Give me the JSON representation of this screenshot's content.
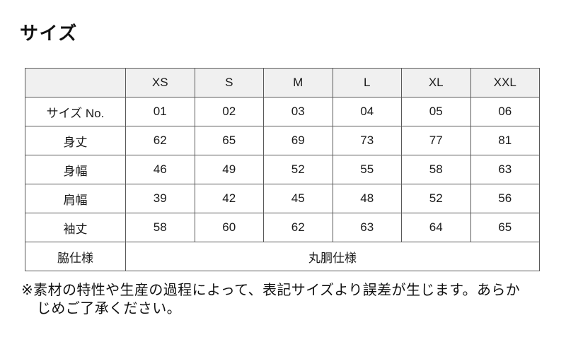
{
  "page": {
    "title": "サイズ"
  },
  "table": {
    "corner_label": "",
    "size_headers": [
      "XS",
      "S",
      "M",
      "L",
      "XL",
      "XXL"
    ],
    "rows": [
      {
        "label": "サイズ No.",
        "values": [
          "01",
          "02",
          "03",
          "04",
          "05",
          "06"
        ]
      },
      {
        "label": "身丈",
        "values": [
          "62",
          "65",
          "69",
          "73",
          "77",
          "81"
        ]
      },
      {
        "label": "身幅",
        "values": [
          "46",
          "49",
          "52",
          "55",
          "58",
          "63"
        ]
      },
      {
        "label": "肩幅",
        "values": [
          "39",
          "42",
          "45",
          "48",
          "52",
          "56"
        ]
      },
      {
        "label": "袖丈",
        "values": [
          "58",
          "60",
          "62",
          "63",
          "64",
          "65"
        ]
      }
    ],
    "spec_row": {
      "label": "脇仕様",
      "value": "丸胴仕様"
    }
  },
  "footnote": {
    "lines": [
      "※素材の特性や生産の過程によって、表記サイズより誤差が生じます。あらか",
      "じめご了承ください。"
    ]
  },
  "colors": {
    "header_bg": "#f0f0f0",
    "border": "#595959",
    "text": "#1a1a1a",
    "page_bg": "#ffffff"
  }
}
